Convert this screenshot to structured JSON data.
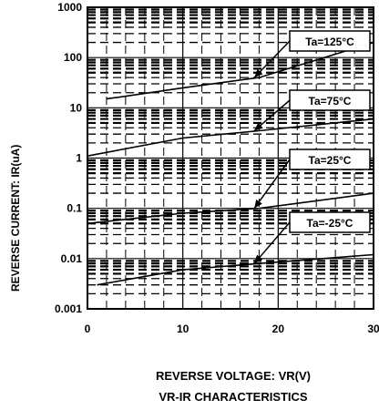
{
  "chart_data": {
    "type": "line",
    "title": "VR-IR CHARACTERISTICS",
    "xlabel": "REVERSE VOLTAGE: VR(V)",
    "ylabel": "REVERSE CURRENT: IR(uA)",
    "xlim": [
      0,
      30
    ],
    "ylim": [
      0.001,
      1000
    ],
    "yscale": "log",
    "xticks": [
      "0",
      "10",
      "20",
      "30"
    ],
    "yticks": [
      "1000",
      "100",
      "10",
      "1",
      "0.1",
      "0.01",
      "0.001"
    ],
    "grid": true,
    "series": [
      {
        "name": "Ta=125°C",
        "x": [
          2,
          10,
          18,
          30
        ],
        "y": [
          15,
          25,
          40,
          200
        ]
      },
      {
        "name": "Ta=75°C",
        "x": [
          0,
          10,
          18,
          30
        ],
        "y": [
          1.1,
          2.5,
          3.5,
          6
        ]
      },
      {
        "name": "Ta=25°C",
        "x": [
          0,
          10,
          18,
          30
        ],
        "y": [
          0.05,
          0.08,
          0.1,
          0.2
        ]
      },
      {
        "name": "Ta=-25°C",
        "x": [
          1,
          10,
          18,
          30
        ],
        "y": [
          0.003,
          0.006,
          0.008,
          0.012
        ]
      }
    ],
    "annotations": [
      {
        "text": "Ta=125°C",
        "target_x": 17.5,
        "target_y": 40
      },
      {
        "text": "Ta=75°C",
        "target_x": 17.5,
        "target_y": 3.5
      },
      {
        "text": "Ta=25°C",
        "target_x": 17.5,
        "target_y": 0.1
      },
      {
        "text": "Ta=-25°C",
        "target_x": 17.5,
        "target_y": 0.008
      }
    ]
  }
}
